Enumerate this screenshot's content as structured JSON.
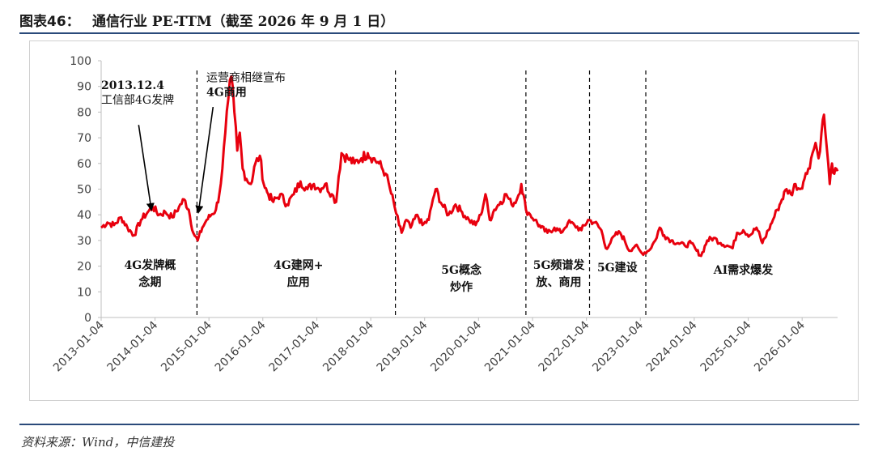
{
  "header": {
    "label": "图表46：",
    "title": "通信行业 PE-TTM（截至 2026 年 9 月 1 日）"
  },
  "source": "资料来源：Wind，中信建投",
  "colors": {
    "line": "#e8000e",
    "rule": "#2a4a7a",
    "axis": "#bfbfbf",
    "divider": "#000000"
  },
  "chart_data": {
    "type": "line",
    "title": "通信行业 PE-TTM（截至 2026 年 9 月 1 日）",
    "xlabel": "",
    "ylabel": "",
    "ylim": [
      0,
      100
    ],
    "yticks": [
      "0",
      "10",
      "20",
      "30",
      "40",
      "50",
      "60",
      "70",
      "80",
      "90",
      "100"
    ],
    "xticks": [
      "2013-01-04",
      "2014-01-04",
      "2015-01-04",
      "2016-01-04",
      "2017-01-04",
      "2018-01-04",
      "2019-01-04",
      "2020-01-04",
      "2021-01-04",
      "2022-01-04",
      "2023-01-04",
      "2024-01-04",
      "2025-01-04",
      "2026-01-04"
    ],
    "xlim": [
      "2013-01-04",
      "2026-09-01"
    ],
    "grid": false,
    "legend": "none",
    "series": [
      {
        "name": "",
        "points": [
          [
            "2013-01-04",
            35
          ],
          [
            "2013-02-15",
            37
          ],
          [
            "2013-04-01",
            36
          ],
          [
            "2013-05-20",
            39
          ],
          [
            "2013-07-01",
            35
          ],
          [
            "2013-08-15",
            32
          ],
          [
            "2013-10-01",
            38
          ],
          [
            "2013-11-15",
            41
          ],
          [
            "2013-12-20",
            43
          ],
          [
            "2014-02-01",
            40
          ],
          [
            "2014-03-15",
            41
          ],
          [
            "2014-05-01",
            39
          ],
          [
            "2014-06-15",
            43
          ],
          [
            "2014-07-20",
            46
          ],
          [
            "2014-08-20",
            42
          ],
          [
            "2014-09-20",
            33
          ],
          [
            "2014-10-20",
            30
          ],
          [
            "2014-11-20",
            35
          ],
          [
            "2014-12-20",
            38
          ],
          [
            "2015-01-20",
            40
          ],
          [
            "2015-02-20",
            42
          ],
          [
            "2015-03-15",
            48
          ],
          [
            "2015-04-05",
            58
          ],
          [
            "2015-04-25",
            72
          ],
          [
            "2015-05-15",
            85
          ],
          [
            "2015-06-05",
            94
          ],
          [
            "2015-06-25",
            80
          ],
          [
            "2015-07-15",
            65
          ],
          [
            "2015-08-01",
            72
          ],
          [
            "2015-08-20",
            58
          ],
          [
            "2015-09-15",
            54
          ],
          [
            "2015-10-15",
            52
          ],
          [
            "2015-11-15",
            60
          ],
          [
            "2015-12-15",
            63
          ],
          [
            "2016-01-10",
            52
          ],
          [
            "2016-02-10",
            48
          ],
          [
            "2016-03-15",
            45
          ],
          [
            "2016-05-01",
            48
          ],
          [
            "2016-06-15",
            44
          ],
          [
            "2016-08-01",
            48
          ],
          [
            "2016-09-15",
            53
          ],
          [
            "2016-11-01",
            50
          ],
          [
            "2016-12-15",
            52
          ],
          [
            "2017-01-20",
            50
          ],
          [
            "2017-03-01",
            52
          ],
          [
            "2017-04-15",
            48
          ],
          [
            "2017-05-15",
            45
          ],
          [
            "2017-06-01",
            55
          ],
          [
            "2017-06-20",
            64
          ],
          [
            "2017-08-01",
            62
          ],
          [
            "2017-09-15",
            60
          ],
          [
            "2017-11-01",
            62
          ],
          [
            "2017-12-15",
            64
          ],
          [
            "2018-01-20",
            62
          ],
          [
            "2018-03-01",
            60
          ],
          [
            "2018-04-15",
            56
          ],
          [
            "2018-05-15",
            50
          ],
          [
            "2018-06-15",
            43
          ],
          [
            "2018-07-15",
            36
          ],
          [
            "2018-08-01",
            33
          ],
          [
            "2018-09-01",
            38
          ],
          [
            "2018-10-01",
            35
          ],
          [
            "2018-11-15",
            40
          ],
          [
            "2018-12-20",
            36
          ],
          [
            "2019-02-01",
            38
          ],
          [
            "2019-03-01",
            46
          ],
          [
            "2019-03-20",
            50
          ],
          [
            "2019-05-01",
            44
          ],
          [
            "2019-06-15",
            40
          ],
          [
            "2019-08-01",
            44
          ],
          [
            "2019-09-15",
            41
          ],
          [
            "2019-11-01",
            38
          ],
          [
            "2019-12-15",
            36
          ],
          [
            "2020-01-20",
            40
          ],
          [
            "2020-02-20",
            48
          ],
          [
            "2020-03-20",
            38
          ],
          [
            "2020-04-20",
            42
          ],
          [
            "2020-06-01",
            45
          ],
          [
            "2020-07-10",
            48
          ],
          [
            "2020-08-15",
            44
          ],
          [
            "2020-09-20",
            46
          ],
          [
            "2020-10-20",
            52
          ],
          [
            "2020-11-20",
            42
          ],
          [
            "2020-12-20",
            40
          ],
          [
            "2021-01-20",
            38
          ],
          [
            "2021-03-01",
            35
          ],
          [
            "2021-04-15",
            33
          ],
          [
            "2021-06-01",
            35
          ],
          [
            "2021-07-15",
            33
          ],
          [
            "2021-09-01",
            37
          ],
          [
            "2021-10-15",
            36
          ],
          [
            "2021-12-01",
            34
          ],
          [
            "2022-01-15",
            38
          ],
          [
            "2022-03-01",
            37
          ],
          [
            "2022-04-15",
            34
          ],
          [
            "2022-05-15",
            27
          ],
          [
            "2022-06-15",
            29
          ],
          [
            "2022-07-15",
            32
          ],
          [
            "2022-08-20",
            33
          ],
          [
            "2022-09-20",
            30
          ],
          [
            "2022-10-20",
            26
          ],
          [
            "2022-12-01",
            28
          ],
          [
            "2023-01-15",
            25
          ],
          [
            "2023-03-01",
            26
          ],
          [
            "2023-04-15",
            30
          ],
          [
            "2023-05-15",
            35
          ],
          [
            "2023-06-15",
            32
          ],
          [
            "2023-08-01",
            30
          ],
          [
            "2023-09-15",
            29
          ],
          [
            "2023-11-01",
            28
          ],
          [
            "2023-12-15",
            29
          ],
          [
            "2024-01-20",
            26
          ],
          [
            "2024-02-20",
            24
          ],
          [
            "2024-04-01",
            30
          ],
          [
            "2024-05-15",
            31
          ],
          [
            "2024-07-01",
            29
          ],
          [
            "2024-08-15",
            28
          ],
          [
            "2024-09-20",
            27
          ],
          [
            "2024-10-20",
            33
          ],
          [
            "2024-12-01",
            34
          ],
          [
            "2025-01-15",
            32
          ],
          [
            "2025-03-01",
            35
          ],
          [
            "2025-04-10",
            29
          ],
          [
            "2025-05-20",
            34
          ],
          [
            "2025-06-20",
            38
          ],
          [
            "2025-07-20",
            42
          ],
          [
            "2025-08-20",
            46
          ],
          [
            "2025-09-20",
            50
          ],
          [
            "2025-10-20",
            48
          ],
          [
            "2025-11-20",
            52
          ],
          [
            "2025-12-20",
            50
          ],
          [
            "2026-01-20",
            54
          ],
          [
            "2026-02-15",
            58
          ],
          [
            "2026-03-15",
            64
          ],
          [
            "2026-04-05",
            68
          ],
          [
            "2026-04-25",
            62
          ],
          [
            "2026-05-15",
            72
          ],
          [
            "2026-06-01",
            79
          ],
          [
            "2026-06-20",
            66
          ],
          [
            "2026-07-10",
            52
          ],
          [
            "2026-07-25",
            60
          ],
          [
            "2026-08-10",
            56
          ],
          [
            "2026-09-01",
            57
          ]
        ]
      }
    ],
    "dividers": [
      "2014-10-15",
      "2018-06-20",
      "2020-11-20",
      "2022-01-25",
      "2023-02-10"
    ],
    "annotations": [
      {
        "id": "a1",
        "lines": [
          "2013.12.4",
          "工信部4G发牌"
        ],
        "bold": [
          true,
          false
        ],
        "anchor": "2013-08-01",
        "y": 89
      },
      {
        "id": "a2",
        "lines": [
          "运营商相继宣布",
          "4G商用"
        ],
        "bold": [
          false,
          true
        ],
        "anchor": "2015-03-01",
        "y": 92
      }
    ],
    "phase_labels": [
      {
        "lines": [
          "4G发牌概",
          "念期"
        ],
        "at": "2013-12-01",
        "y": 19
      },
      {
        "lines": [
          "4G建网+",
          "应用"
        ],
        "at": "2016-09-01",
        "y": 19
      },
      {
        "lines": [
          "5G概念",
          "炒作"
        ],
        "at": "2019-09-10",
        "y": 17
      },
      {
        "lines": [
          "5G频谱发",
          "放、商用"
        ],
        "at": "2021-07-01",
        "y": 19
      },
      {
        "lines": [
          "5G建设"
        ],
        "at": "2022-08-01",
        "y": 18
      },
      {
        "lines": [
          "AI需求爆发"
        ],
        "at": "2024-12-01",
        "y": 17
      }
    ]
  }
}
